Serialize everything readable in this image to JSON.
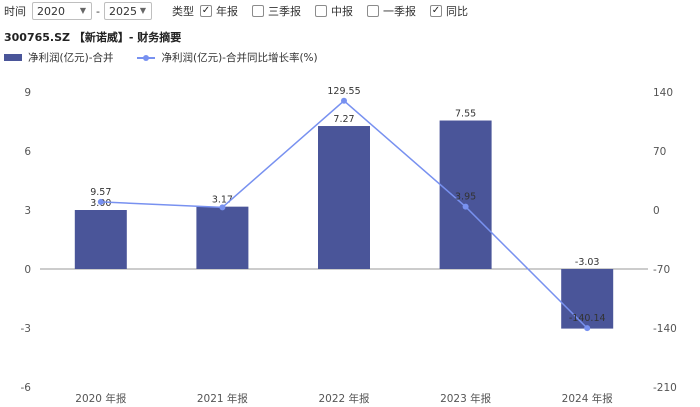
{
  "toolbar": {
    "time_label": "时间",
    "start_year": "2020",
    "separator": "-",
    "end_year": "2025",
    "type_label": "类型",
    "checkboxes": [
      {
        "label": "年报",
        "checked": true
      },
      {
        "label": "三季报",
        "checked": false
      },
      {
        "label": "中报",
        "checked": false
      },
      {
        "label": "一季报",
        "checked": false
      },
      {
        "label": "同比",
        "checked": true
      }
    ],
    "check_mark": "✓",
    "caret": "▼"
  },
  "chart_title": "300765.SZ 【新诺威】- 财务摘要",
  "chart_data": {
    "type": "bar",
    "categories": [
      "2020 年报",
      "2021 年报",
      "2022 年报",
      "2023 年报",
      "2024 年报"
    ],
    "series": [
      {
        "name": "净利润(亿元)-合并",
        "type": "bar",
        "axis": "left",
        "color": "#4a5599",
        "values": [
          3.0,
          3.17,
          7.27,
          7.55,
          -3.03
        ],
        "labels": [
          "3.00",
          "3.17",
          "7.27",
          "7.55",
          "-3.03"
        ]
      },
      {
        "name": "净利润(亿元)-合并同比增长率(%)",
        "type": "line",
        "axis": "right",
        "color": "#7891f0",
        "values": [
          9.57,
          3.17,
          129.55,
          3.95,
          -140.14
        ],
        "labels": [
          "9.57",
          "",
          "129.55",
          "3.95",
          "-140.14"
        ]
      }
    ],
    "y_left": {
      "min": -6,
      "max": 9,
      "ticks": [
        9,
        6,
        3,
        0,
        -3,
        -6
      ]
    },
    "y_right": {
      "min": -210,
      "max": 140,
      "ticks": [
        140,
        70,
        0,
        -70,
        -140,
        -210
      ]
    },
    "grid": false,
    "legend_position": "top-left"
  }
}
